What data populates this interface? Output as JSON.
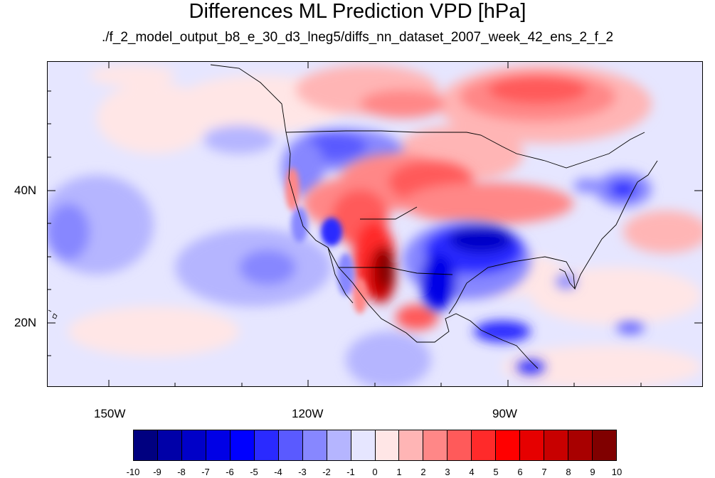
{
  "title": "Differences ML Prediction VPD [hPa]",
  "subtitle": "./f_2_model_output_b8_e_30_d3_lneg5/diffs_nn_dataset_2007_week_42_ens_2_f_2",
  "axes": {
    "y_labels": [
      "40N",
      "20N"
    ],
    "x_labels": [
      "150W",
      "120W",
      "90W"
    ]
  },
  "map": {
    "projection": "cylindrical equidistant",
    "lon_range": [
      -160,
      -60
    ],
    "lat_range": [
      10,
      59
    ],
    "background_hint": "light blue/pink anomaly field",
    "features": [
      {
        "name": "strong-positive-anomaly-southwest-mexico",
        "sign": "positive",
        "magnitude": 10
      },
      {
        "name": "strong-negative-anomaly-texas-oklahoma",
        "sign": "negative",
        "magnitude": -7
      },
      {
        "name": "positive-anomaly-central-plains",
        "sign": "positive",
        "magnitude": 5
      },
      {
        "name": "positive-anomaly-hudson-bay",
        "sign": "positive",
        "magnitude": 5
      },
      {
        "name": "negative-anomaly-northern-rockies",
        "sign": "negative",
        "magnitude": -5
      },
      {
        "name": "negative-anomaly-east-coast",
        "sign": "negative",
        "magnitude": -4
      },
      {
        "name": "negative-anomaly-pacific",
        "sign": "negative",
        "magnitude": -2
      }
    ]
  },
  "colorbar": {
    "colors": [
      "#000080",
      "#0000a8",
      "#0000c8",
      "#0000e6",
      "#0000ff",
      "#2a2aff",
      "#5a5aff",
      "#8787ff",
      "#b5b5ff",
      "#e6e6ff",
      "#ffe6e6",
      "#ffb5b5",
      "#ff8787",
      "#ff5a5a",
      "#ff2a2a",
      "#ff0000",
      "#e60000",
      "#c80000",
      "#a80000",
      "#800000"
    ],
    "labels": [
      "-10",
      "-9",
      "-8",
      "-7",
      "-6",
      "-5",
      "-4",
      "-3",
      "-2",
      "-1",
      "0",
      "1",
      "2",
      "3",
      "4",
      "5",
      "6",
      "7",
      "8",
      "9",
      "10"
    ]
  }
}
